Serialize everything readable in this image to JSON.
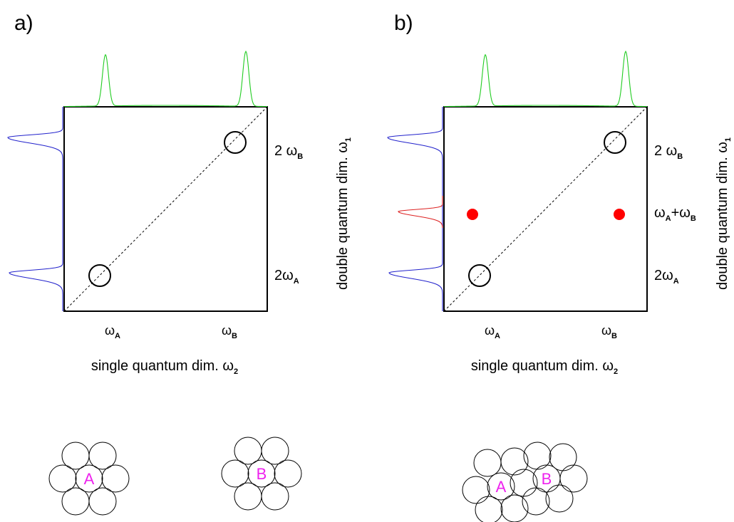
{
  "panels": [
    {
      "label": "a)",
      "x_ticks": [
        [
          {
            "text": "ω"
          },
          {
            "sub": "A"
          }
        ],
        [
          {
            "text": "ω"
          },
          {
            "sub": "B"
          }
        ]
      ],
      "y_ticks": [
        [
          {
            "text": "2 ω"
          },
          {
            "sub": "B"
          }
        ],
        [
          {
            "text": "2ω"
          },
          {
            "sub": "A"
          }
        ]
      ],
      "x_title": [
        {
          "text": "single quantum dim.  ω"
        },
        {
          "sub": "2"
        }
      ],
      "y_title": [
        {
          "text": "double quantum dim.  ω"
        },
        {
          "sub": "1"
        }
      ],
      "molecules": [
        "A",
        "B"
      ]
    },
    {
      "label": "b)",
      "x_ticks": [
        [
          {
            "text": "ω"
          },
          {
            "sub": "A"
          }
        ],
        [
          {
            "text": "ω"
          },
          {
            "sub": "B"
          }
        ]
      ],
      "y_ticks": [
        [
          {
            "text": "2 ω"
          },
          {
            "sub": "B"
          }
        ],
        [
          {
            "text": "ω"
          },
          {
            "sub": "A"
          },
          {
            "text": "+ω"
          },
          {
            "sub": "B"
          }
        ],
        [
          {
            "text": "2ω"
          },
          {
            "sub": "A"
          }
        ]
      ],
      "x_title": [
        {
          "text": "single quantum dim.  ω"
        },
        {
          "sub": "2"
        }
      ],
      "y_title": [
        {
          "text": "double quantum dim.  ω"
        },
        {
          "sub": "1"
        }
      ],
      "molecules": [
        "A",
        "B"
      ]
    }
  ]
}
